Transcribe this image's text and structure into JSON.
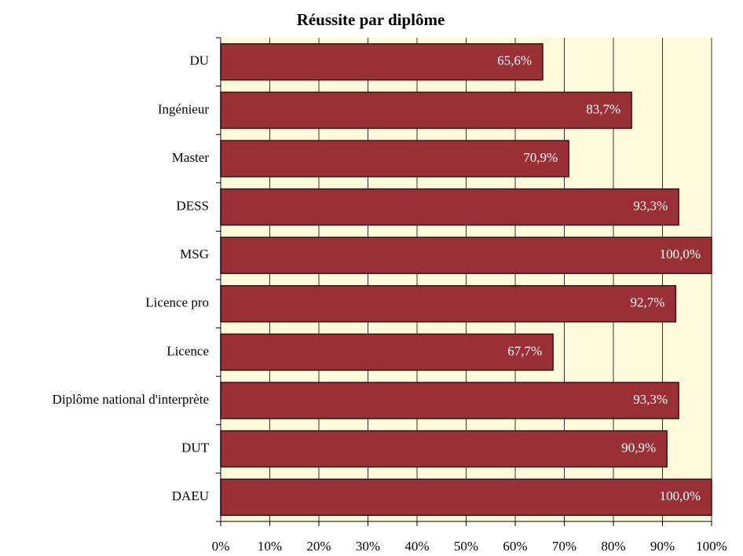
{
  "chart_data": {
    "type": "hbar",
    "title": "Réussite par diplôme",
    "categories": [
      "DU",
      "Ingénieur",
      "Master",
      "DESS",
      "MSG",
      "Licence pro",
      "Licence",
      "Diplôme national d'interprète",
      "DUT",
      "DAEU"
    ],
    "values": [
      65.6,
      83.7,
      70.9,
      93.3,
      100.0,
      92.7,
      67.7,
      93.3,
      90.9,
      100.0
    ],
    "value_labels": [
      "65,6%",
      "83,7%",
      "70,9%",
      "93,3%",
      "100,0%",
      "92,7%",
      "67,7%",
      "93,3%",
      "90,9%",
      "100,0%"
    ],
    "color": "#993035",
    "xlim": [
      0,
      100
    ],
    "xticks": [
      {
        "value": 0,
        "label": "0%"
      },
      {
        "value": 10,
        "label": "10%"
      },
      {
        "value": 20,
        "label": "20%"
      },
      {
        "value": 30,
        "label": "30%"
      },
      {
        "value": 40,
        "label": "40%"
      },
      {
        "value": 50,
        "label": "50%"
      },
      {
        "value": 60,
        "label": "60%"
      },
      {
        "value": 70,
        "label": "70%"
      },
      {
        "value": 80,
        "label": "80%"
      },
      {
        "value": 90,
        "label": "90%"
      },
      {
        "value": 100,
        "label": "100%"
      }
    ],
    "grid": true
  }
}
